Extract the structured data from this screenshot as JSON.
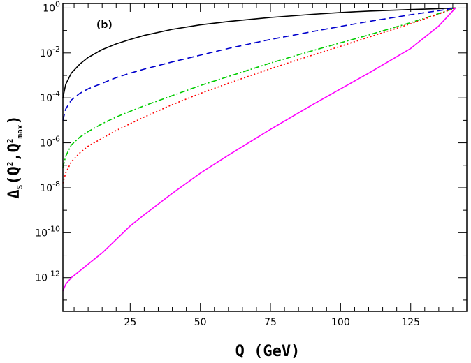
{
  "chart_data": {
    "type": "line",
    "panel_label": "(b)",
    "xlabel": "Q (GeV)",
    "ylabel": {
      "delta": "Δ",
      "sub_s": "S",
      "paren_open": "(Q",
      "sup_2a": "2",
      "comma": ",Q",
      "sup_2b": "2",
      "sub_max": "max",
      "paren_close": ")"
    },
    "xlim": [
      1,
      145
    ],
    "ylim_log10": [
      -13.5,
      0.2
    ],
    "y_scale": "log",
    "x_ticks": [
      {
        "value": 25,
        "label": "25"
      },
      {
        "value": 50,
        "label": "50"
      },
      {
        "value": 75,
        "label": "75"
      },
      {
        "value": 100,
        "label": "100"
      },
      {
        "value": 125,
        "label": "125"
      }
    ],
    "y_ticks": [
      {
        "exp": 0,
        "base": "10",
        "sup": "0"
      },
      {
        "exp": -2,
        "base": "10",
        "sup": "-2"
      },
      {
        "exp": -4,
        "base": "10",
        "sup": "-4"
      },
      {
        "exp": -6,
        "base": "10",
        "sup": "-6"
      },
      {
        "exp": -8,
        "base": "10",
        "sup": "-8"
      },
      {
        "exp": -10,
        "base": "10",
        "sup": "-10"
      },
      {
        "exp": -12,
        "base": "10",
        "sup": "-12"
      }
    ],
    "series": [
      {
        "color": "#000000",
        "dash": "solid",
        "x": [
          1,
          2,
          4,
          7,
          10,
          15,
          20,
          25,
          30,
          40,
          50,
          60,
          75,
          90,
          100,
          110,
          125,
          135,
          141
        ],
        "log10_y": [
          -4.0,
          -3.4,
          -2.9,
          -2.5,
          -2.2,
          -1.85,
          -1.6,
          -1.4,
          -1.22,
          -0.95,
          -0.75,
          -0.6,
          -0.42,
          -0.28,
          -0.2,
          -0.14,
          -0.07,
          -0.03,
          0.0
        ]
      },
      {
        "color": "#0000cc",
        "dash": "dashed",
        "x": [
          1,
          2,
          4,
          7,
          10,
          15,
          20,
          25,
          30,
          40,
          50,
          60,
          75,
          90,
          100,
          110,
          125,
          135,
          141
        ],
        "log10_y": [
          -5.0,
          -4.5,
          -4.1,
          -3.8,
          -3.6,
          -3.35,
          -3.1,
          -2.9,
          -2.72,
          -2.4,
          -2.1,
          -1.8,
          -1.4,
          -1.05,
          -0.82,
          -0.6,
          -0.3,
          -0.12,
          0.0
        ]
      },
      {
        "color": "#00cc00",
        "dash": "dash-dot",
        "x": [
          1,
          2,
          4,
          7,
          10,
          15,
          20,
          25,
          30,
          40,
          50,
          60,
          75,
          90,
          100,
          110,
          125,
          135,
          141
        ],
        "log10_y": [
          -7.1,
          -6.6,
          -6.1,
          -5.75,
          -5.5,
          -5.15,
          -4.85,
          -4.6,
          -4.35,
          -3.9,
          -3.45,
          -3.05,
          -2.45,
          -1.9,
          -1.55,
          -1.2,
          -0.65,
          -0.25,
          0.0
        ]
      },
      {
        "color": "#ff0000",
        "dash": "dotted",
        "x": [
          1,
          2,
          4,
          7,
          10,
          15,
          20,
          25,
          30,
          40,
          50,
          60,
          75,
          90,
          100,
          110,
          125,
          135,
          141
        ],
        "log10_y": [
          -7.8,
          -7.35,
          -6.85,
          -6.45,
          -6.15,
          -5.8,
          -5.45,
          -5.15,
          -4.85,
          -4.3,
          -3.8,
          -3.35,
          -2.7,
          -2.1,
          -1.7,
          -1.3,
          -0.7,
          -0.27,
          0.0
        ]
      },
      {
        "color": "#ff00ff",
        "dash": "solid",
        "x": [
          1,
          2,
          4,
          7,
          10,
          15,
          20,
          25,
          30,
          40,
          50,
          60,
          75,
          90,
          100,
          110,
          125,
          135,
          141
        ],
        "log10_y": [
          -12.6,
          -12.3,
          -12.0,
          -11.7,
          -11.4,
          -10.9,
          -10.3,
          -9.7,
          -9.2,
          -8.25,
          -7.35,
          -6.55,
          -5.4,
          -4.3,
          -3.6,
          -2.9,
          -1.8,
          -0.8,
          0.0
        ]
      }
    ]
  }
}
